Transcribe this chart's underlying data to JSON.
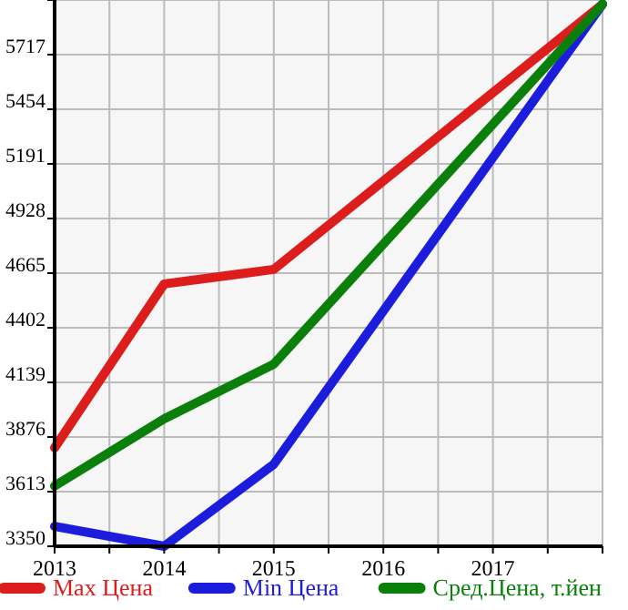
{
  "chart_data": {
    "type": "line",
    "x": [
      2013,
      2014,
      2015,
      2018
    ],
    "xlim": [
      2013,
      2018
    ],
    "xticks": [
      2013,
      {
        "value": 2013.5,
        "label": null
      },
      2014,
      {
        "value": 2014.5,
        "label": null
      },
      2015,
      {
        "value": 2015.5,
        "label": null
      },
      2016,
      {
        "value": 2016.5,
        "label": null
      },
      2017,
      {
        "value": 2017.5,
        "label": null
      },
      {
        "value": 2018,
        "label": null
      }
    ],
    "ylim": [
      3350,
      5980
    ],
    "yticks": [
      3350,
      3613,
      3876,
      4139,
      4402,
      4665,
      4928,
      5191,
      5454,
      5717,
      {
        "value": 5980,
        "label": null
      }
    ],
    "grid": true,
    "legend": "bottom",
    "marker": "none",
    "line_style": "solid",
    "series": [
      {
        "name": "Max Цена",
        "color": "#dd1c1c",
        "values": [
          3824,
          4613,
          4683,
          5960
        ]
      },
      {
        "name": "Min Цена",
        "color": "#1c1cdd",
        "values": [
          3446,
          3350,
          3745,
          5960
        ]
      },
      {
        "name": "Сред.Цена, т.йен",
        "color": "#0a800a",
        "values": [
          3640,
          3964,
          4227,
          5960
        ]
      }
    ]
  }
}
